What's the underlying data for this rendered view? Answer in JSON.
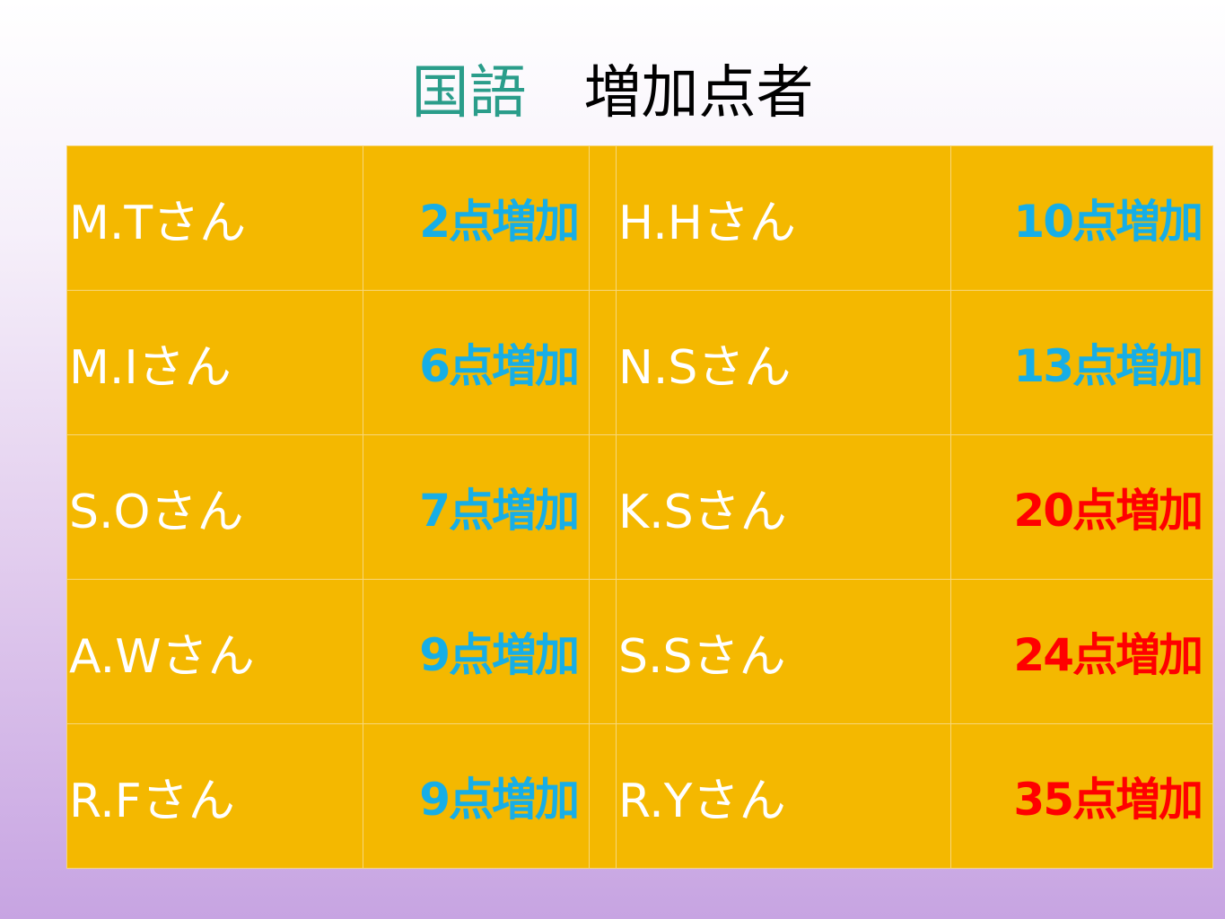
{
  "title": {
    "subject": "国語",
    "text": "増加点者"
  },
  "table": {
    "rows": [
      [
        "M.Tさん",
        "2点増加",
        "H.Hさん",
        "10点増加"
      ],
      [
        "M.Iさん",
        "6点増加",
        "N.Sさん",
        "13点増加"
      ],
      [
        "S.Oさん",
        "7点増加",
        "K.Sさん",
        "20点増加"
      ],
      [
        "A.Wさん",
        "9点増加",
        "S.Sさん",
        "24点増加"
      ],
      [
        "R.Fさん",
        "9点増加",
        "R.Yさん",
        "35点増加"
      ]
    ]
  }
}
